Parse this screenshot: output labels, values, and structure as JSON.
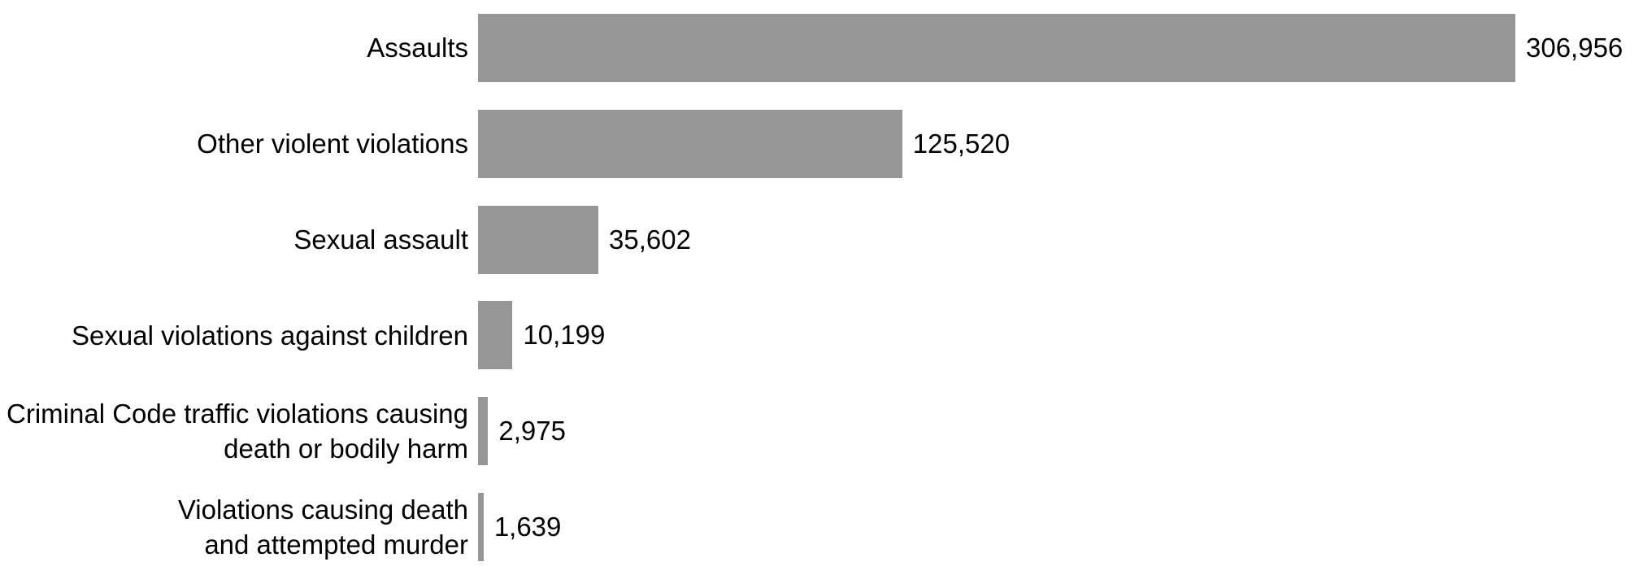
{
  "chart_data": {
    "type": "bar",
    "orientation": "horizontal",
    "title": "",
    "xlabel": "",
    "ylabel": "",
    "grid": false,
    "legend": false,
    "axis_lines": false,
    "value_label_position": "outside-end",
    "bar_color": "#969696",
    "text_color": "#000000",
    "background_color": "#ffffff",
    "xlim": [
      0,
      306956
    ],
    "categories": [
      "Assaults",
      "Other violent violations",
      "Sexual assault",
      "Sexual violations against children",
      "Criminal Code traffic violations causing death or bodily harm",
      "Violations causing death and attempted murder"
    ],
    "category_label_lines": [
      [
        "Assaults"
      ],
      [
        "Other violent violations"
      ],
      [
        "Sexual assault"
      ],
      [
        "Sexual violations against children"
      ],
      [
        "Criminal Code traffic violations causing",
        "death or bodily harm"
      ],
      [
        "Violations causing death",
        "and attempted murder"
      ]
    ],
    "values": [
      306956,
      125520,
      35602,
      10199,
      2975,
      1639
    ],
    "value_labels": [
      "306,956",
      "125,520",
      "35,602",
      "10,199",
      "2,975",
      "1,639"
    ]
  }
}
